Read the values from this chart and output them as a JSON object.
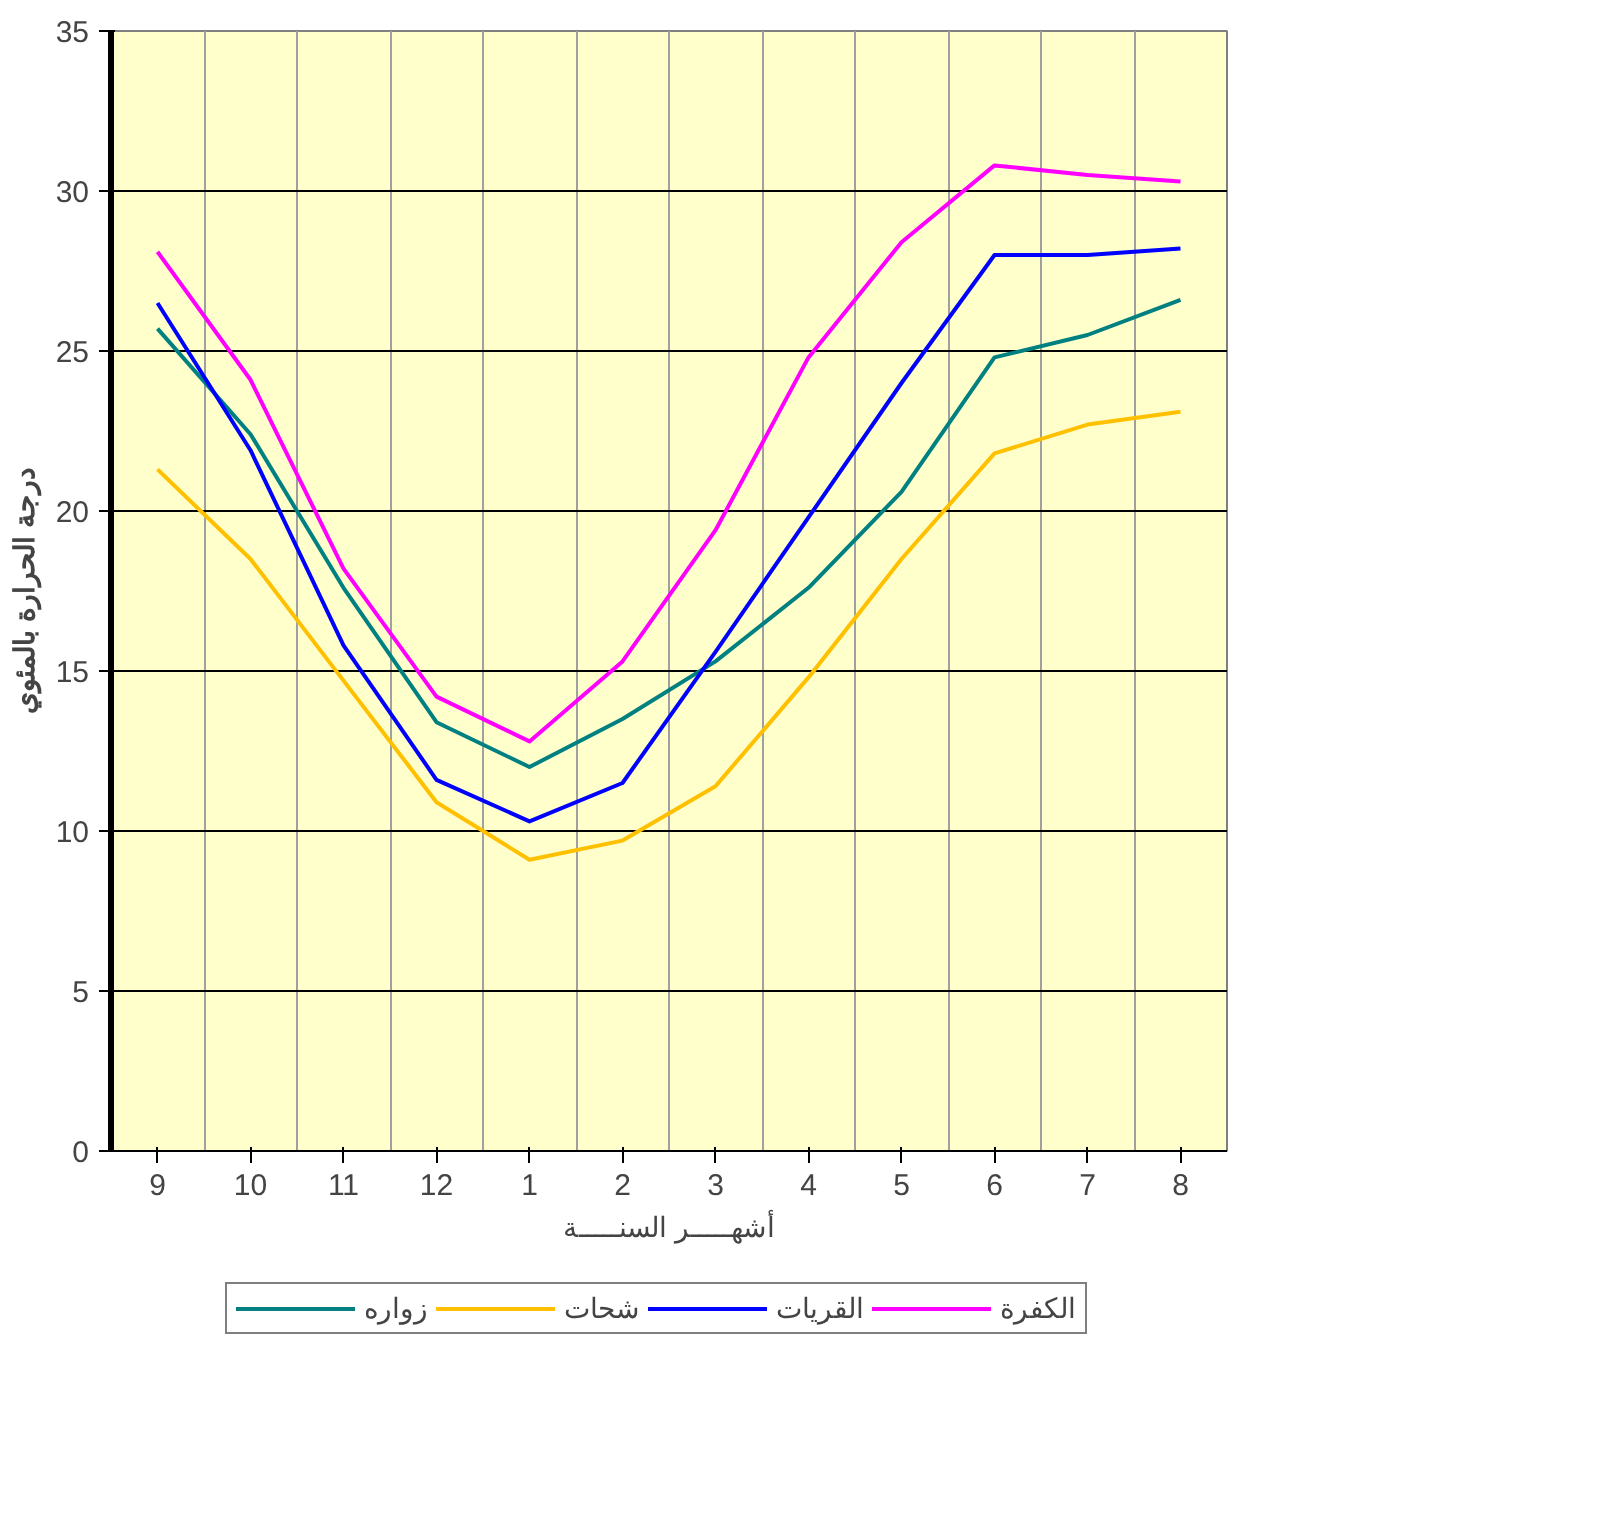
{
  "chart_data": {
    "type": "line",
    "xlabel": "أشهـــــر السنـــــة",
    "ylabel": "درجة الحرارة بالمئوي",
    "categories": [
      "9",
      "10",
      "11",
      "12",
      "1",
      "2",
      "3",
      "4",
      "5",
      "6",
      "7",
      "8"
    ],
    "series": [
      {
        "name": "زواره",
        "color": "#008080",
        "values": [
          25.7,
          22.4,
          17.6,
          13.4,
          12.0,
          13.5,
          15.3,
          17.6,
          20.6,
          24.8,
          25.5,
          26.6
        ]
      },
      {
        "name": "شحات",
        "color": "#ffc000",
        "values": [
          21.3,
          18.5,
          14.7,
          10.9,
          9.1,
          9.7,
          11.4,
          14.8,
          18.5,
          21.8,
          22.7,
          23.1
        ]
      },
      {
        "name": "القريات",
        "color": "#0000ff",
        "values": [
          26.5,
          21.9,
          15.8,
          11.6,
          10.3,
          11.5,
          15.6,
          19.8,
          24.0,
          28.0,
          28.0,
          28.2
        ]
      },
      {
        "name": "الكفرة",
        "color": "#ff00ff",
        "values": [
          28.1,
          24.1,
          18.2,
          14.2,
          12.8,
          15.3,
          19.4,
          24.8,
          28.4,
          30.8,
          30.5,
          30.3
        ]
      }
    ],
    "ylim": [
      0,
      35
    ],
    "yticks": [
      0,
      5,
      10,
      15,
      20,
      25,
      30,
      35
    ],
    "grid": true,
    "legend": "bottom",
    "marker": "none",
    "line_style": "solid"
  }
}
